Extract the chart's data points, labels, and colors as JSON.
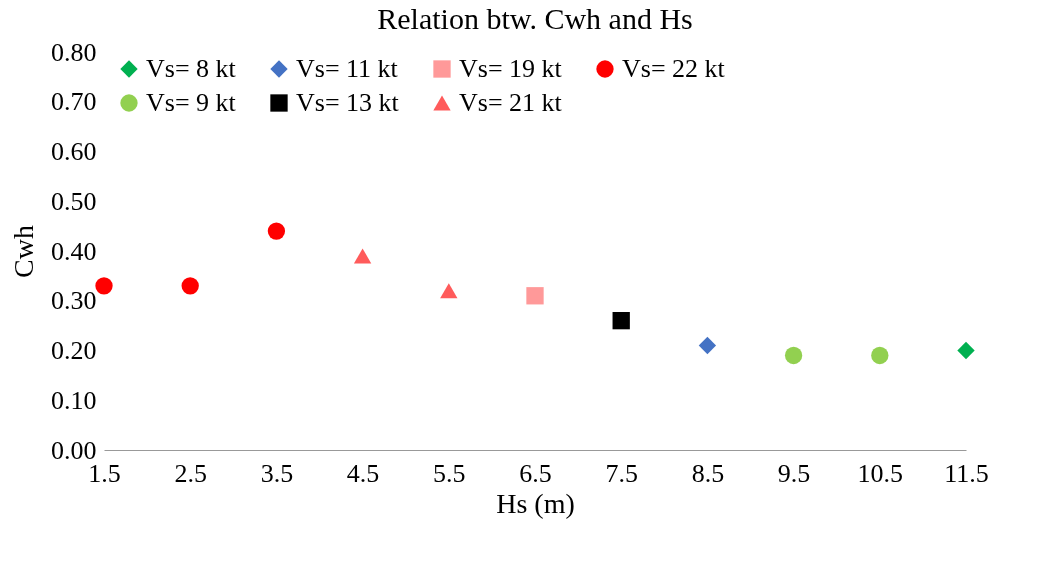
{
  "chart_data": {
    "type": "scatter",
    "title": "Relation btw. Cwh and Hs",
    "xlabel": "Hs (m)",
    "ylabel": "Cwh",
    "xlim": [
      1.5,
      11.5
    ],
    "xticks": [
      1.5,
      2.5,
      3.5,
      4.5,
      5.5,
      6.5,
      7.5,
      8.5,
      9.5,
      10.5,
      11.5
    ],
    "ylim": [
      0,
      0.8
    ],
    "yticks": [
      {
        "value": 0,
        "label": "0.00"
      },
      {
        "value": 0.1,
        "label": "0.10"
      },
      {
        "value": 0.2,
        "label": "0.20"
      },
      {
        "value": 0.3,
        "label": "0.30"
      },
      {
        "value": 0.4,
        "label": "0.40"
      },
      {
        "value": 0.5,
        "label": "0.50"
      },
      {
        "value": 0.6,
        "label": "0.60"
      },
      {
        "value": 0.7,
        "label": "0.70"
      },
      {
        "value": 0.8,
        "label": "0.80"
      }
    ],
    "grid": false,
    "legend": "top",
    "series": [
      {
        "name": "Vs= 8 kt",
        "color": "#00b050",
        "marker": "diamond",
        "x": [
          11.5
        ],
        "values": [
          0.2
        ]
      },
      {
        "name": "Vs= 9 kt",
        "color": "#92d050",
        "marker": "circle",
        "x": [
          9.5,
          10.5
        ],
        "values": [
          0.19,
          0.19
        ]
      },
      {
        "name": "Vs= 11 kt",
        "color": "#4472c4",
        "marker": "diamond",
        "x": [
          8.5
        ],
        "values": [
          0.21
        ]
      },
      {
        "name": "Vs= 13 kt",
        "color": "#000000",
        "marker": "square",
        "x": [
          7.5
        ],
        "values": [
          0.26
        ]
      },
      {
        "name": "Vs= 19 kt",
        "color": "#ff9999",
        "marker": "square",
        "x": [
          6.5
        ],
        "values": [
          0.31
        ]
      },
      {
        "name": "Vs= 21 kt",
        "color": "#ff5b5b",
        "marker": "triangle",
        "x": [
          4.5,
          5.5
        ],
        "values": [
          0.39,
          0.32
        ]
      },
      {
        "name": "Vs= 22 kt",
        "color": "#ff0000",
        "marker": "circle",
        "x": [
          1.5,
          2.5,
          3.5
        ],
        "values": [
          0.33,
          0.33,
          0.44
        ]
      }
    ]
  }
}
